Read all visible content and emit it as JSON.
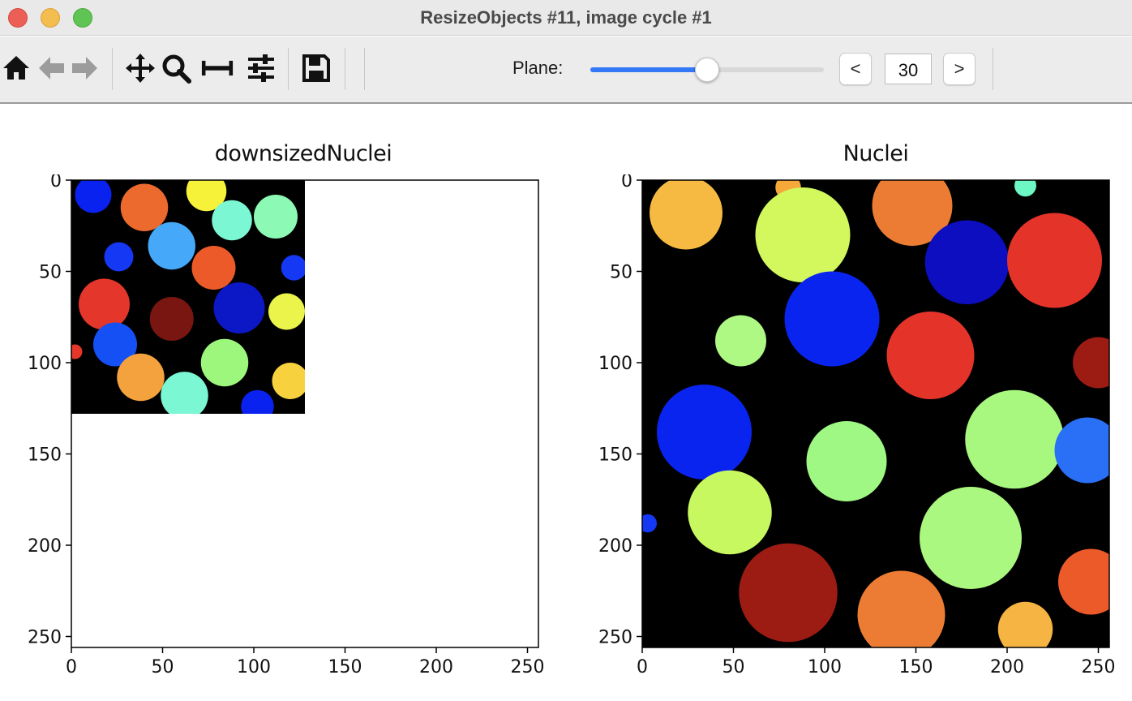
{
  "window": {
    "title": "ResizeObjects #11, image cycle #1",
    "controls": [
      "close",
      "minimize",
      "maximize"
    ]
  },
  "toolbar": {
    "icons": [
      "home-icon",
      "back-arrow-icon",
      "forward-arrow-icon",
      "pan-icon",
      "zoom-icon",
      "subplots-icon",
      "configure-icon",
      "save-icon"
    ],
    "plane_label": "Plane:",
    "plane_value": "30",
    "prev_label": "<",
    "next_label": ">",
    "slider_fraction": 0.5
  },
  "colors": {
    "background": "#ffffff",
    "toolbar": "#ececec",
    "slider_accent": "#3478f6"
  },
  "chart_data": [
    {
      "type": "heatmap",
      "title": "downsizedNuclei",
      "image_extent": [
        0,
        128
      ],
      "xlim": [
        0,
        256
      ],
      "ylim": [
        256,
        0
      ],
      "xticks": [
        "0",
        "50",
        "100",
        "150",
        "200",
        "250"
      ],
      "yticks": [
        "0",
        "50",
        "100",
        "150",
        "200",
        "250"
      ],
      "colormap": "jet",
      "objects": [
        {
          "x": 12,
          "y": 8,
          "r": 10,
          "color": "#0a22f0"
        },
        {
          "x": 40,
          "y": 15,
          "r": 13,
          "color": "#ec6a2e"
        },
        {
          "x": 74,
          "y": 6,
          "r": 11,
          "color": "#f6f23a"
        },
        {
          "x": 88,
          "y": 22,
          "r": 11,
          "color": "#7cf7d4"
        },
        {
          "x": 112,
          "y": 20,
          "r": 12,
          "color": "#8cf9b4"
        },
        {
          "x": 55,
          "y": 36,
          "r": 13,
          "color": "#46a8f9"
        },
        {
          "x": 26,
          "y": 42,
          "r": 8,
          "color": "#1438f4"
        },
        {
          "x": 78,
          "y": 48,
          "r": 12,
          "color": "#ec5a2a"
        },
        {
          "x": 122,
          "y": 48,
          "r": 7,
          "color": "#1438f4"
        },
        {
          "x": 18,
          "y": 68,
          "r": 14,
          "color": "#e4362a"
        },
        {
          "x": 55,
          "y": 76,
          "r": 12,
          "color": "#7a1612"
        },
        {
          "x": 92,
          "y": 70,
          "r": 14,
          "color": "#0c18c6"
        },
        {
          "x": 118,
          "y": 72,
          "r": 10,
          "color": "#eaf44a"
        },
        {
          "x": 24,
          "y": 90,
          "r": 12,
          "color": "#1450f4"
        },
        {
          "x": 2,
          "y": 94,
          "r": 4,
          "color": "#e4362a"
        },
        {
          "x": 84,
          "y": 100,
          "r": 13,
          "color": "#9cf77c"
        },
        {
          "x": 38,
          "y": 108,
          "r": 13,
          "color": "#f4a23e"
        },
        {
          "x": 62,
          "y": 118,
          "r": 13,
          "color": "#7cf7d4"
        },
        {
          "x": 120,
          "y": 110,
          "r": 10,
          "color": "#f7d23e"
        },
        {
          "x": 102,
          "y": 124,
          "r": 9,
          "color": "#0a22f0"
        }
      ]
    },
    {
      "type": "heatmap",
      "title": "Nuclei",
      "image_extent": [
        0,
        256
      ],
      "xlim": [
        0,
        256
      ],
      "ylim": [
        256,
        0
      ],
      "xticks": [
        "0",
        "50",
        "100",
        "150",
        "200",
        "250"
      ],
      "yticks": [
        "0",
        "50",
        "100",
        "150",
        "200",
        "250"
      ],
      "colormap": "jet",
      "objects": [
        {
          "x": 24,
          "y": 18,
          "r": 20,
          "color": "#f6ba42"
        },
        {
          "x": 80,
          "y": 4,
          "r": 7,
          "color": "#f6a83a"
        },
        {
          "x": 148,
          "y": 14,
          "r": 22,
          "color": "#ec7c34"
        },
        {
          "x": 210,
          "y": 3,
          "r": 6,
          "color": "#6cf7c4"
        },
        {
          "x": 88,
          "y": 30,
          "r": 26,
          "color": "#d2f85e"
        },
        {
          "x": 178,
          "y": 45,
          "r": 23,
          "color": "#0c0ec0"
        },
        {
          "x": 226,
          "y": 44,
          "r": 26,
          "color": "#e4342a"
        },
        {
          "x": 104,
          "y": 76,
          "r": 26,
          "color": "#0a24f0"
        },
        {
          "x": 54,
          "y": 88,
          "r": 14,
          "color": "#aef884"
        },
        {
          "x": 158,
          "y": 96,
          "r": 24,
          "color": "#e4342a"
        },
        {
          "x": 250,
          "y": 100,
          "r": 14,
          "color": "#9c1c14"
        },
        {
          "x": 34,
          "y": 138,
          "r": 26,
          "color": "#0a24f0"
        },
        {
          "x": 112,
          "y": 154,
          "r": 22,
          "color": "#a0f884"
        },
        {
          "x": 204,
          "y": 142,
          "r": 27,
          "color": "#a8f880"
        },
        {
          "x": 244,
          "y": 148,
          "r": 18,
          "color": "#2a70f6"
        },
        {
          "x": 3,
          "y": 188,
          "r": 5,
          "color": "#1438f4"
        },
        {
          "x": 48,
          "y": 182,
          "r": 23,
          "color": "#c8f860"
        },
        {
          "x": 180,
          "y": 196,
          "r": 28,
          "color": "#aaf880"
        },
        {
          "x": 80,
          "y": 226,
          "r": 27,
          "color": "#9c1c14"
        },
        {
          "x": 142,
          "y": 238,
          "r": 24,
          "color": "#ec7c34"
        },
        {
          "x": 210,
          "y": 246,
          "r": 15,
          "color": "#f6b442"
        },
        {
          "x": 246,
          "y": 220,
          "r": 18,
          "color": "#ec5a2a"
        }
      ]
    }
  ]
}
